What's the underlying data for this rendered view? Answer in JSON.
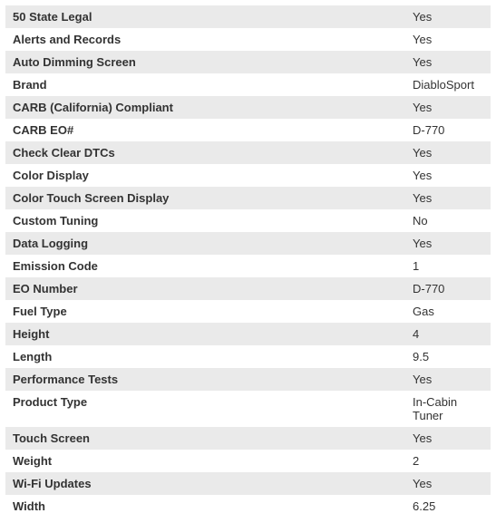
{
  "specs": {
    "rows": [
      {
        "label": "50 State Legal",
        "value": "Yes"
      },
      {
        "label": "Alerts and Records",
        "value": "Yes"
      },
      {
        "label": "Auto Dimming Screen",
        "value": "Yes"
      },
      {
        "label": "Brand",
        "value": "DiabloSport"
      },
      {
        "label": "CARB (California) Compliant",
        "value": "Yes"
      },
      {
        "label": "CARB EO#",
        "value": "D-770"
      },
      {
        "label": "Check Clear DTCs",
        "value": "Yes"
      },
      {
        "label": "Color Display",
        "value": "Yes"
      },
      {
        "label": "Color Touch Screen Display",
        "value": "Yes"
      },
      {
        "label": "Custom Tuning",
        "value": "No"
      },
      {
        "label": "Data Logging",
        "value": "Yes"
      },
      {
        "label": "Emission Code",
        "value": "1"
      },
      {
        "label": "EO Number",
        "value": "D-770"
      },
      {
        "label": "Fuel Type",
        "value": "Gas"
      },
      {
        "label": "Height",
        "value": "4"
      },
      {
        "label": "Length",
        "value": "9.5"
      },
      {
        "label": "Performance Tests",
        "value": "Yes"
      },
      {
        "label": "Product Type",
        "value": "In-Cabin Tuner"
      },
      {
        "label": "Touch Screen",
        "value": "Yes"
      },
      {
        "label": "Weight",
        "value": "2"
      },
      {
        "label": "Wi-Fi Updates",
        "value": "Yes"
      },
      {
        "label": "Width",
        "value": "6.25"
      }
    ],
    "colors": {
      "row_odd_bg": "#eaeaea",
      "row_even_bg": "#ffffff",
      "text_color": "#333333"
    },
    "font_size": 13,
    "label_font_weight": 700,
    "value_font_weight": 400
  }
}
